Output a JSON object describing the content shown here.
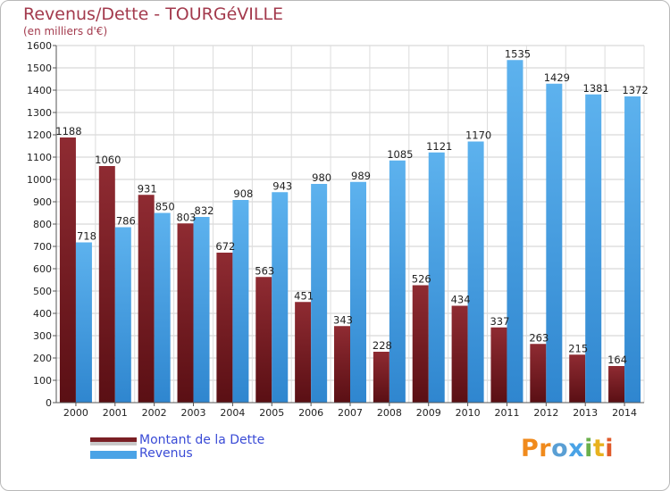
{
  "header": {
    "title": "Revenus/Dette - TOURGéVILLE",
    "subtitle": "(en milliers d'€)"
  },
  "colors": {
    "debt": "#7a1f24",
    "revenue": "#4aa3e6",
    "title": "#a33a4d",
    "legend_text": "#3a4bd6"
  },
  "legend": {
    "debt_label": "Montant de la Dette",
    "revenue_label": "Revenus"
  },
  "logo": {
    "text": "Proxiti"
  },
  "chart_data": {
    "type": "bar",
    "title": "Revenus/Dette - TOURGéVILLE",
    "subtitle": "(en milliers d'€)",
    "categories": [
      "2000",
      "2001",
      "2002",
      "2003",
      "2004",
      "2005",
      "2006",
      "2007",
      "2008",
      "2009",
      "2010",
      "2011",
      "2012",
      "2013",
      "2014"
    ],
    "series": [
      {
        "name": "Montant de la Dette",
        "values": [
          1188,
          1060,
          931,
          803,
          672,
          563,
          451,
          343,
          228,
          526,
          434,
          337,
          263,
          215,
          164
        ]
      },
      {
        "name": "Revenus",
        "values": [
          718,
          786,
          850,
          832,
          908,
          943,
          980,
          989,
          1085,
          1121,
          1170,
          1535,
          1429,
          1381,
          1372
        ]
      }
    ],
    "ylim": [
      0,
      1600
    ],
    "yticks": [
      0,
      100,
      200,
      300,
      400,
      500,
      600,
      700,
      800,
      900,
      1000,
      1100,
      1200,
      1300,
      1400,
      1500,
      1600
    ],
    "grid": true,
    "legend_position": "bottom-left"
  }
}
